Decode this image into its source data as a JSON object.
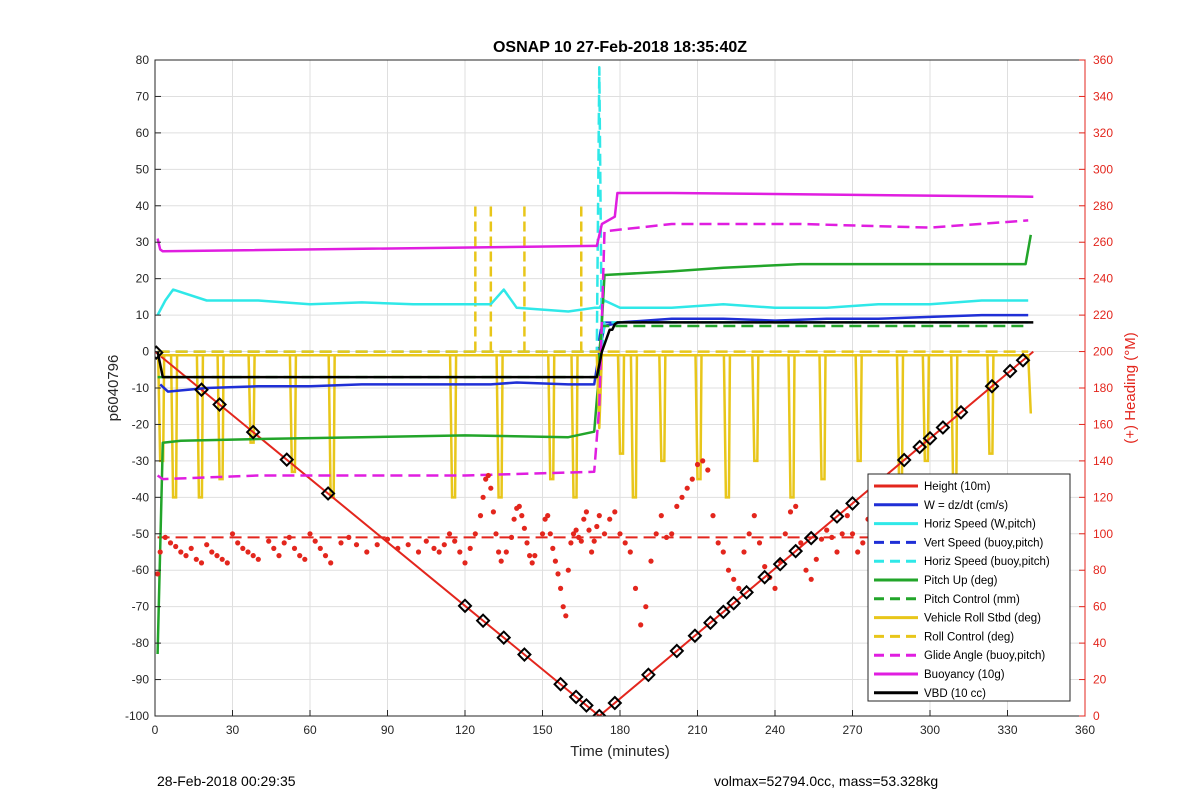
{
  "chart_data": {
    "type": "line",
    "title": "OSNAP 10 27-Feb-2018 18:35:40Z",
    "xlabel": "Time (minutes)",
    "ylabel": "p6040796",
    "y2label": "(+) Heading (°M)",
    "xlim": [
      0,
      360
    ],
    "ylim": [
      -100,
      80
    ],
    "y2lim": [
      0,
      360
    ],
    "xticks": [
      0,
      30,
      60,
      90,
      120,
      150,
      180,
      210,
      240,
      270,
      300,
      330,
      360
    ],
    "yticks": [
      -100,
      -90,
      -80,
      -70,
      -60,
      -50,
      -40,
      -30,
      -20,
      -10,
      0,
      10,
      20,
      30,
      40,
      50,
      60,
      70,
      80
    ],
    "y2ticks": [
      0,
      20,
      40,
      60,
      80,
      100,
      120,
      140,
      160,
      180,
      200,
      220,
      240,
      260,
      280,
      300,
      320,
      340,
      360
    ],
    "grid": true,
    "legend_position": "bottom-right",
    "legend": [
      {
        "label": "Height (10m)",
        "color": "#e3261d",
        "dash": false
      },
      {
        "label": "W = dz/dt (cm/s)",
        "color": "#1f2fd6",
        "dash": false
      },
      {
        "label": "Horiz Speed (W,pitch)",
        "color": "#2fe8e8",
        "dash": false
      },
      {
        "label": "Vert Speed (buoy,pitch)",
        "color": "#1f2fd6",
        "dash": true
      },
      {
        "label": "Horiz Speed (buoy,pitch)",
        "color": "#2fe8e8",
        "dash": true
      },
      {
        "label": "Pitch Up (deg)",
        "color": "#22a52a",
        "dash": false
      },
      {
        "label": "Pitch Control (mm)",
        "color": "#22a52a",
        "dash": true
      },
      {
        "label": "Vehicle Roll Stbd (deg)",
        "color": "#e8c61a",
        "dash": false
      },
      {
        "label": "Roll Control (deg)",
        "color": "#e8c61a",
        "dash": true
      },
      {
        "label": "Glide Angle (buoy,pitch)",
        "color": "#e01ee0",
        "dash": true
      },
      {
        "label": "Buoyancy (10g)",
        "color": "#e01ee0",
        "dash": false
      },
      {
        "label": "VBD (10 cc)",
        "color": "#000000",
        "dash": false
      }
    ],
    "heading_reference": 98,
    "series": [
      {
        "name": "Height (10m)",
        "color": "#e3261d",
        "dash": false,
        "width": 2,
        "x": [
          0,
          172,
          340
        ],
        "y": [
          0,
          -100,
          0
        ]
      },
      {
        "name": "W = dz/dt (cm/s)",
        "color": "#1f2fd6",
        "dash": false,
        "width": 2.5,
        "x": [
          2,
          5,
          20,
          40,
          60,
          80,
          100,
          120,
          130,
          140,
          160,
          170,
          172,
          174,
          180,
          200,
          220,
          240,
          260,
          280,
          300,
          320,
          338
        ],
        "y": [
          -9,
          -11,
          -10,
          -9.5,
          -9.5,
          -9,
          -9,
          -9,
          -9,
          -8.5,
          -9,
          -9,
          0,
          7,
          8,
          9,
          9,
          8.5,
          9,
          9,
          9.5,
          10,
          10
        ]
      },
      {
        "name": "Horiz Speed (W,pitch)",
        "color": "#2fe8e8",
        "dash": false,
        "width": 2.5,
        "x": [
          1,
          4,
          7,
          20,
          40,
          60,
          80,
          100,
          120,
          130,
          135,
          140,
          160,
          170,
          172,
          174,
          180,
          200,
          220,
          240,
          260,
          280,
          300,
          320,
          338
        ],
        "y": [
          10,
          14,
          17,
          14,
          14,
          13,
          13.5,
          13,
          13,
          13,
          17,
          12,
          11,
          12,
          12,
          14,
          12,
          12,
          13,
          12,
          12,
          13,
          13,
          14,
          14
        ]
      },
      {
        "name": "Vert Speed (buoy,pitch)",
        "color": "#1f2fd6",
        "dash": true,
        "width": 2,
        "x": [
          1,
          171,
          173,
          338
        ],
        "y": [
          0,
          0,
          8,
          8
        ]
      },
      {
        "name": "Horiz Speed (buoy,pitch)",
        "color": "#2fe8e8",
        "dash": true,
        "width": 2.5,
        "x": [
          1,
          171,
          172,
          173,
          174,
          176,
          338
        ],
        "y": [
          0,
          0,
          78,
          0,
          8,
          8,
          8
        ]
      },
      {
        "name": "Pitch Up (deg)",
        "color": "#22a52a",
        "dash": false,
        "width": 2.5,
        "x": [
          1,
          3,
          10,
          40,
          80,
          120,
          160,
          170,
          172,
          174,
          200,
          220,
          250,
          280,
          320,
          337,
          339
        ],
        "y": [
          -83,
          -25,
          -24.5,
          -24,
          -23.5,
          -23,
          -23.5,
          -22,
          -5,
          21,
          22,
          23,
          24,
          24,
          24,
          24,
          32
        ]
      },
      {
        "name": "Pitch Control (mm)",
        "color": "#22a52a",
        "dash": true,
        "width": 2.5,
        "x": [
          1,
          171,
          173,
          338
        ],
        "y": [
          -7,
          -7,
          7,
          7
        ]
      },
      {
        "name": "Vehicle Roll Stbd (deg)",
        "color": "#e8c61a",
        "dash": false,
        "width": 2.5,
        "x": [
          1,
          171,
          172,
          173,
          338,
          339
        ],
        "y": [
          -1,
          -1,
          -21,
          -1,
          -1,
          -17
        ]
      },
      {
        "name": "Roll Control (deg)",
        "color": "#e8c61a",
        "dash": true,
        "width": 2.5,
        "x": [
          1,
          338
        ],
        "y": [
          0,
          0
        ]
      },
      {
        "name": "Glide Angle (buoy,pitch)",
        "color": "#e01ee0",
        "dash": true,
        "width": 2.5,
        "x": [
          1,
          3,
          40,
          80,
          120,
          170,
          172,
          174,
          200,
          250,
          300,
          338
        ],
        "y": [
          -34,
          -35,
          -34,
          -34,
          -34,
          -33,
          -15,
          33,
          35,
          35,
          34,
          36
        ]
      },
      {
        "name": "Buoyancy (10g)",
        "color": "#e01ee0",
        "dash": false,
        "width": 2.5,
        "x": [
          1,
          2,
          3,
          170,
          171,
          173,
          178,
          179,
          200,
          340
        ],
        "y": [
          31,
          28,
          27.5,
          29,
          29,
          35,
          37,
          43.5,
          43.5,
          42.5
        ]
      },
      {
        "name": "VBD (10 cc)",
        "color": "#000000",
        "dash": false,
        "width": 2.5,
        "x": [
          1,
          3,
          170,
          171,
          173,
          176,
          177,
          178,
          179,
          200,
          340
        ],
        "y": [
          0,
          -7,
          -7,
          -7,
          0,
          6,
          6,
          7.5,
          8,
          8,
          8
        ]
      }
    ],
    "roll_spikes": {
      "color": "#e8c61a",
      "solid": [
        {
          "x": 2,
          "y": -30
        },
        {
          "x": 7,
          "y": -40
        },
        {
          "x": 17,
          "y": -40
        },
        {
          "x": 25,
          "y": -35
        },
        {
          "x": 37,
          "y": -25
        },
        {
          "x": 53,
          "y": -33
        },
        {
          "x": 68,
          "y": -40
        },
        {
          "x": 115,
          "y": -40
        },
        {
          "x": 133,
          "y": -40
        },
        {
          "x": 153,
          "y": -35
        },
        {
          "x": 162,
          "y": -40
        },
        {
          "x": 180,
          "y": -28
        },
        {
          "x": 185,
          "y": -40
        },
        {
          "x": 196,
          "y": -30
        },
        {
          "x": 210,
          "y": -35
        },
        {
          "x": 221,
          "y": -40
        },
        {
          "x": 232,
          "y": -30
        },
        {
          "x": 246,
          "y": -40
        },
        {
          "x": 258,
          "y": -35
        },
        {
          "x": 272,
          "y": -30
        },
        {
          "x": 288,
          "y": -35
        },
        {
          "x": 298,
          "y": -30
        },
        {
          "x": 309,
          "y": -40
        },
        {
          "x": 323,
          "y": -28
        }
      ],
      "dashed": [
        {
          "x": 124,
          "y": 40
        },
        {
          "x": 130,
          "y": 40
        },
        {
          "x": 143,
          "y": 40
        },
        {
          "x": 165,
          "y": 40
        }
      ]
    },
    "heading_points": [
      [
        1,
        78
      ],
      [
        2,
        90
      ],
      [
        4,
        98
      ],
      [
        6,
        95
      ],
      [
        8,
        93
      ],
      [
        10,
        90
      ],
      [
        12,
        88
      ],
      [
        14,
        92
      ],
      [
        16,
        86
      ],
      [
        18,
        84
      ],
      [
        20,
        94
      ],
      [
        22,
        90
      ],
      [
        24,
        88
      ],
      [
        26,
        86
      ],
      [
        28,
        84
      ],
      [
        30,
        100
      ],
      [
        32,
        95
      ],
      [
        34,
        92
      ],
      [
        36,
        90
      ],
      [
        38,
        88
      ],
      [
        40,
        86
      ],
      [
        44,
        96
      ],
      [
        46,
        92
      ],
      [
        48,
        88
      ],
      [
        50,
        95
      ],
      [
        52,
        98
      ],
      [
        54,
        92
      ],
      [
        56,
        88
      ],
      [
        58,
        86
      ],
      [
        60,
        100
      ],
      [
        62,
        96
      ],
      [
        64,
        92
      ],
      [
        66,
        88
      ],
      [
        68,
        84
      ],
      [
        72,
        95
      ],
      [
        75,
        98
      ],
      [
        78,
        94
      ],
      [
        82,
        90
      ],
      [
        86,
        94
      ],
      [
        90,
        97
      ],
      [
        94,
        92
      ],
      [
        98,
        94
      ],
      [
        102,
        90
      ],
      [
        105,
        96
      ],
      [
        108,
        92
      ],
      [
        110,
        90
      ],
      [
        112,
        94
      ],
      [
        114,
        100
      ],
      [
        116,
        96
      ],
      [
        118,
        90
      ],
      [
        120,
        84
      ],
      [
        122,
        92
      ],
      [
        124,
        100
      ],
      [
        126,
        110
      ],
      [
        127,
        120
      ],
      [
        128,
        130
      ],
      [
        129,
        132
      ],
      [
        130,
        125
      ],
      [
        131,
        112
      ],
      [
        132,
        100
      ],
      [
        133,
        90
      ],
      [
        134,
        85
      ],
      [
        136,
        90
      ],
      [
        138,
        98
      ],
      [
        139,
        108
      ],
      [
        140,
        114
      ],
      [
        141,
        115
      ],
      [
        142,
        110
      ],
      [
        143,
        103
      ],
      [
        144,
        95
      ],
      [
        145,
        88
      ],
      [
        146,
        84
      ],
      [
        147,
        88
      ],
      [
        150,
        100
      ],
      [
        151,
        108
      ],
      [
        152,
        110
      ],
      [
        153,
        100
      ],
      [
        154,
        92
      ],
      [
        155,
        85
      ],
      [
        156,
        78
      ],
      [
        157,
        70
      ],
      [
        158,
        60
      ],
      [
        159,
        55
      ],
      [
        160,
        80
      ],
      [
        161,
        95
      ],
      [
        162,
        100
      ],
      [
        163,
        102
      ],
      [
        164,
        98
      ],
      [
        165,
        96
      ],
      [
        166,
        108
      ],
      [
        167,
        112
      ],
      [
        168,
        102
      ],
      [
        169,
        90
      ],
      [
        170,
        96
      ],
      [
        171,
        104
      ],
      [
        172,
        110
      ],
      [
        174,
        100
      ],
      [
        176,
        108
      ],
      [
        178,
        112
      ],
      [
        180,
        100
      ],
      [
        182,
        95
      ],
      [
        184,
        90
      ],
      [
        186,
        70
      ],
      [
        188,
        50
      ],
      [
        190,
        60
      ],
      [
        192,
        85
      ],
      [
        194,
        100
      ],
      [
        196,
        110
      ],
      [
        198,
        98
      ],
      [
        200,
        100
      ],
      [
        202,
        115
      ],
      [
        204,
        120
      ],
      [
        206,
        125
      ],
      [
        208,
        130
      ],
      [
        210,
        138
      ],
      [
        212,
        140
      ],
      [
        214,
        135
      ],
      [
        216,
        110
      ],
      [
        218,
        95
      ],
      [
        220,
        90
      ],
      [
        222,
        80
      ],
      [
        224,
        75
      ],
      [
        226,
        70
      ],
      [
        228,
        90
      ],
      [
        230,
        100
      ],
      [
        232,
        110
      ],
      [
        234,
        95
      ],
      [
        236,
        82
      ],
      [
        238,
        76
      ],
      [
        240,
        70
      ],
      [
        242,
        85
      ],
      [
        244,
        100
      ],
      [
        246,
        112
      ],
      [
        248,
        115
      ],
      [
        250,
        95
      ],
      [
        252,
        80
      ],
      [
        254,
        75
      ],
      [
        256,
        86
      ],
      [
        258,
        97
      ],
      [
        260,
        102
      ],
      [
        262,
        98
      ],
      [
        264,
        90
      ],
      [
        266,
        100
      ],
      [
        268,
        110
      ],
      [
        270,
        100
      ],
      [
        272,
        90
      ],
      [
        274,
        95
      ],
      [
        276,
        108
      ],
      [
        278,
        104
      ],
      [
        280,
        96
      ],
      [
        282,
        92
      ],
      [
        284,
        100
      ],
      [
        286,
        104
      ],
      [
        288,
        98
      ],
      [
        290,
        92
      ],
      [
        292,
        96
      ],
      [
        294,
        106
      ],
      [
        296,
        100
      ],
      [
        298,
        94
      ],
      [
        300,
        103
      ],
      [
        302,
        108
      ],
      [
        304,
        102
      ],
      [
        306,
        96
      ],
      [
        308,
        95
      ],
      [
        310,
        103
      ],
      [
        312,
        108
      ],
      [
        314,
        104
      ],
      [
        316,
        98
      ],
      [
        318,
        94
      ],
      [
        320,
        100
      ],
      [
        322,
        106
      ],
      [
        324,
        104
      ],
      [
        326,
        96
      ],
      [
        328,
        92
      ],
      [
        330,
        98
      ],
      [
        332,
        102
      ]
    ],
    "markers": [
      0.5,
      18,
      25,
      38,
      51,
      67,
      120,
      127,
      135,
      143,
      157,
      163,
      167,
      172,
      178,
      191,
      202,
      209,
      215,
      220,
      224,
      229,
      236,
      242,
      248,
      254,
      264,
      270,
      290,
      296,
      300,
      305,
      312,
      324,
      331,
      336
    ]
  },
  "footer": {
    "left": "28-Feb-2018 00:29:35",
    "right": "volmax=52794.0cc, mass=53.328kg"
  }
}
